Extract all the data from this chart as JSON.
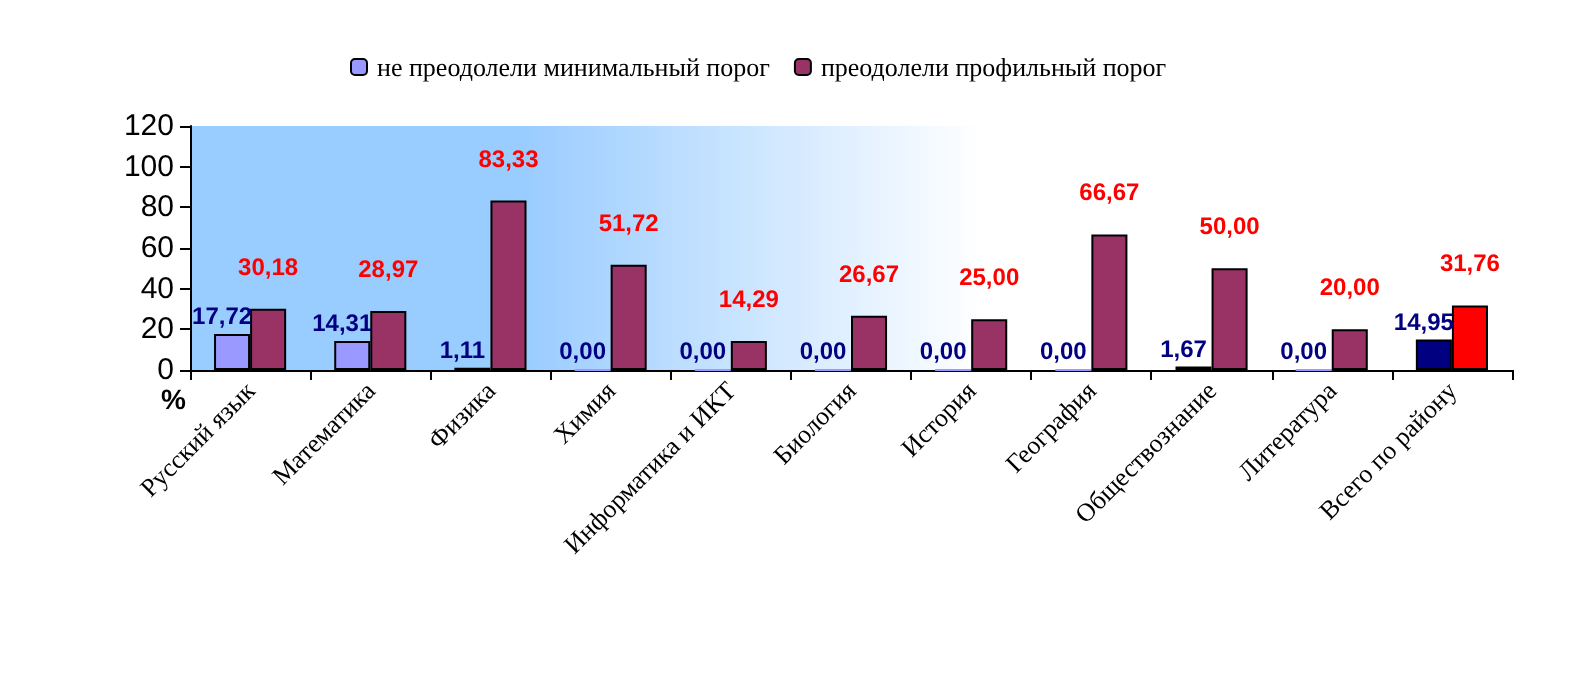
{
  "chart_data": {
    "type": "bar",
    "ylabel": "%",
    "categories": [
      "Русский язык",
      "Математика",
      "Физика",
      "Химия",
      "Информатика и ИКТ",
      "Биология",
      "История",
      "География",
      "Обществознание",
      "Литература",
      "Всего по району"
    ],
    "series": [
      {
        "name": "не преодолели минимальный порог",
        "color": "#9999ff",
        "colors": [
          "#9999ff",
          "#9999ff",
          "#9999ff",
          "#9999ff",
          "#9999ff",
          "#9999ff",
          "#9999ff",
          "#9999ff",
          "#9999ff",
          "#9999ff",
          "#000080"
        ],
        "values": [
          17.72,
          14.31,
          1.11,
          0,
          0,
          0,
          0,
          0,
          1.67,
          0,
          14.95
        ],
        "value_labels": [
          "17,72",
          "14,31",
          "1,11",
          "0,00",
          "0,00",
          "0,00",
          "0,00",
          "0,00",
          "1,67",
          "0,00",
          "14,95"
        ]
      },
      {
        "name": "преодолели профильный порог",
        "color": "#993366",
        "colors": [
          "#993366",
          "#993366",
          "#993366",
          "#993366",
          "#993366",
          "#993366",
          "#993366",
          "#993366",
          "#993366",
          "#993366",
          "#ff0000"
        ],
        "values": [
          30.18,
          28.97,
          83.33,
          51.72,
          14.29,
          26.67,
          25,
          66.67,
          50,
          20,
          31.76
        ],
        "value_labels": [
          "30,18",
          "28,97",
          "83,33",
          "51,72",
          "14,29",
          "26,67",
          "25,00",
          "66,67",
          "50,00",
          "20,00",
          "31,76"
        ]
      }
    ],
    "ylim": [
      0,
      120
    ],
    "yticks": [
      0,
      20,
      40,
      60,
      80,
      100,
      120
    ],
    "grid": false,
    "legend": "top"
  }
}
